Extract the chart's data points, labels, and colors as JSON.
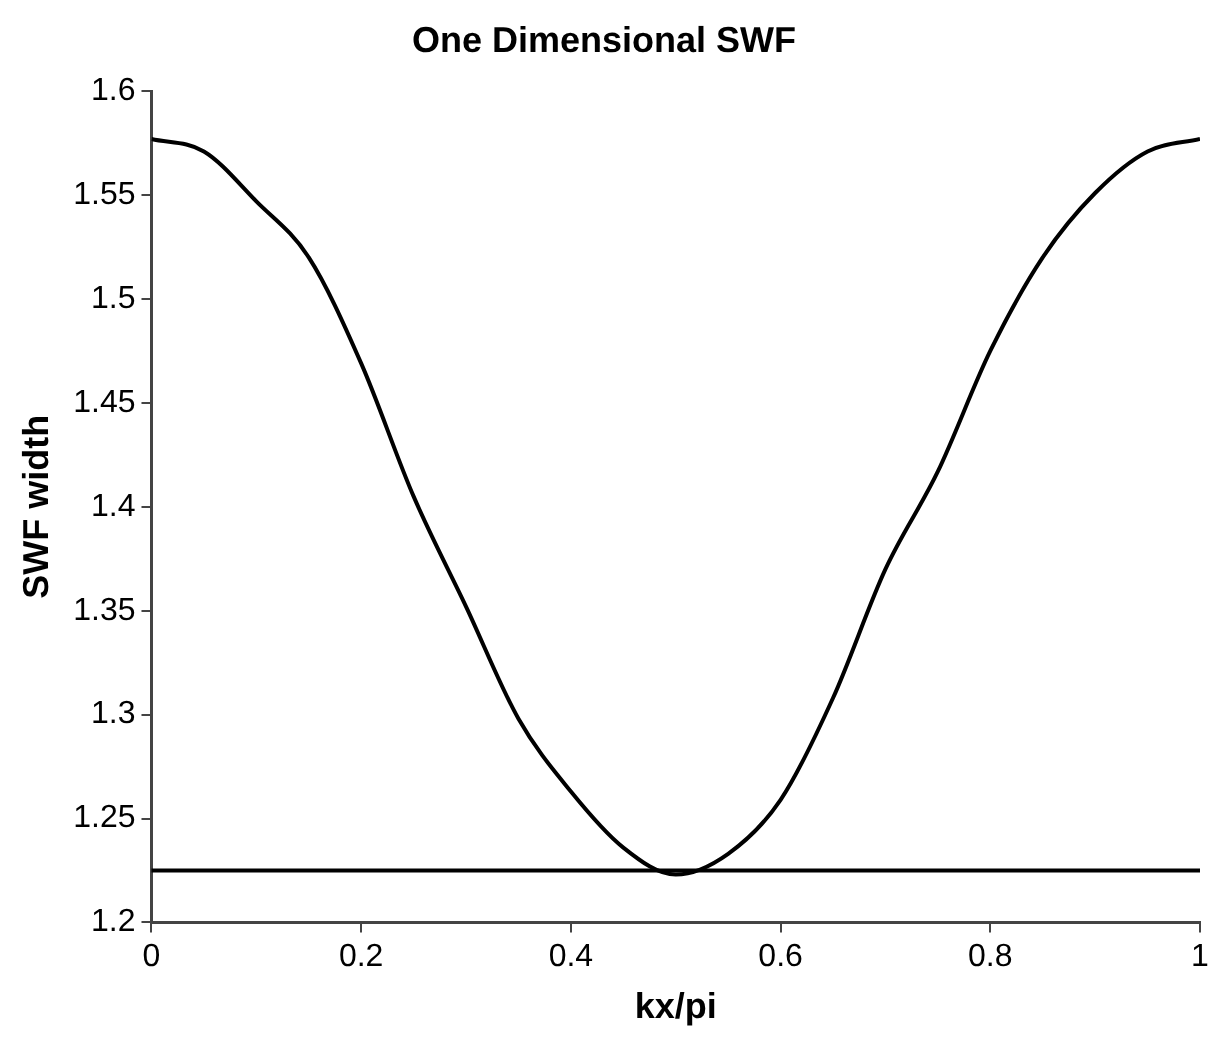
{
  "chart_data": {
    "type": "line",
    "title": "One Dimensional SWF",
    "xlabel": "kx/pi",
    "ylabel": "SWF width",
    "x": [
      0,
      0.05,
      0.1,
      0.15,
      0.2,
      0.25,
      0.3,
      0.35,
      0.4,
      0.45,
      0.5,
      0.55,
      0.6,
      0.65,
      0.7,
      0.75,
      0.8,
      0.85,
      0.9,
      0.95,
      1
    ],
    "series": [
      {
        "color": "#000000",
        "values": [
          1.577,
          1.571,
          1.547,
          1.52,
          1.469,
          1.405,
          1.352,
          1.298,
          1.263,
          1.236,
          1.223,
          1.233,
          1.259,
          1.308,
          1.37,
          1.417,
          1.475,
          1.52,
          1.551,
          1.571,
          1.577
        ]
      }
    ],
    "ref_lines": [
      {
        "axis": "y",
        "value": 1.225,
        "color": "#000000",
        "line_style": "solid"
      }
    ],
    "xlim": [
      0,
      1
    ],
    "xticks": [
      0,
      0.2,
      0.4,
      0.6,
      0.8,
      1
    ],
    "ylim": [
      1.2,
      1.6
    ],
    "yticks": [
      1.2,
      1.25,
      1.3,
      1.35,
      1.4,
      1.45,
      1.5,
      1.55,
      1.6
    ],
    "grid": false,
    "legend": false,
    "marker": "none",
    "line_style": "solid"
  }
}
